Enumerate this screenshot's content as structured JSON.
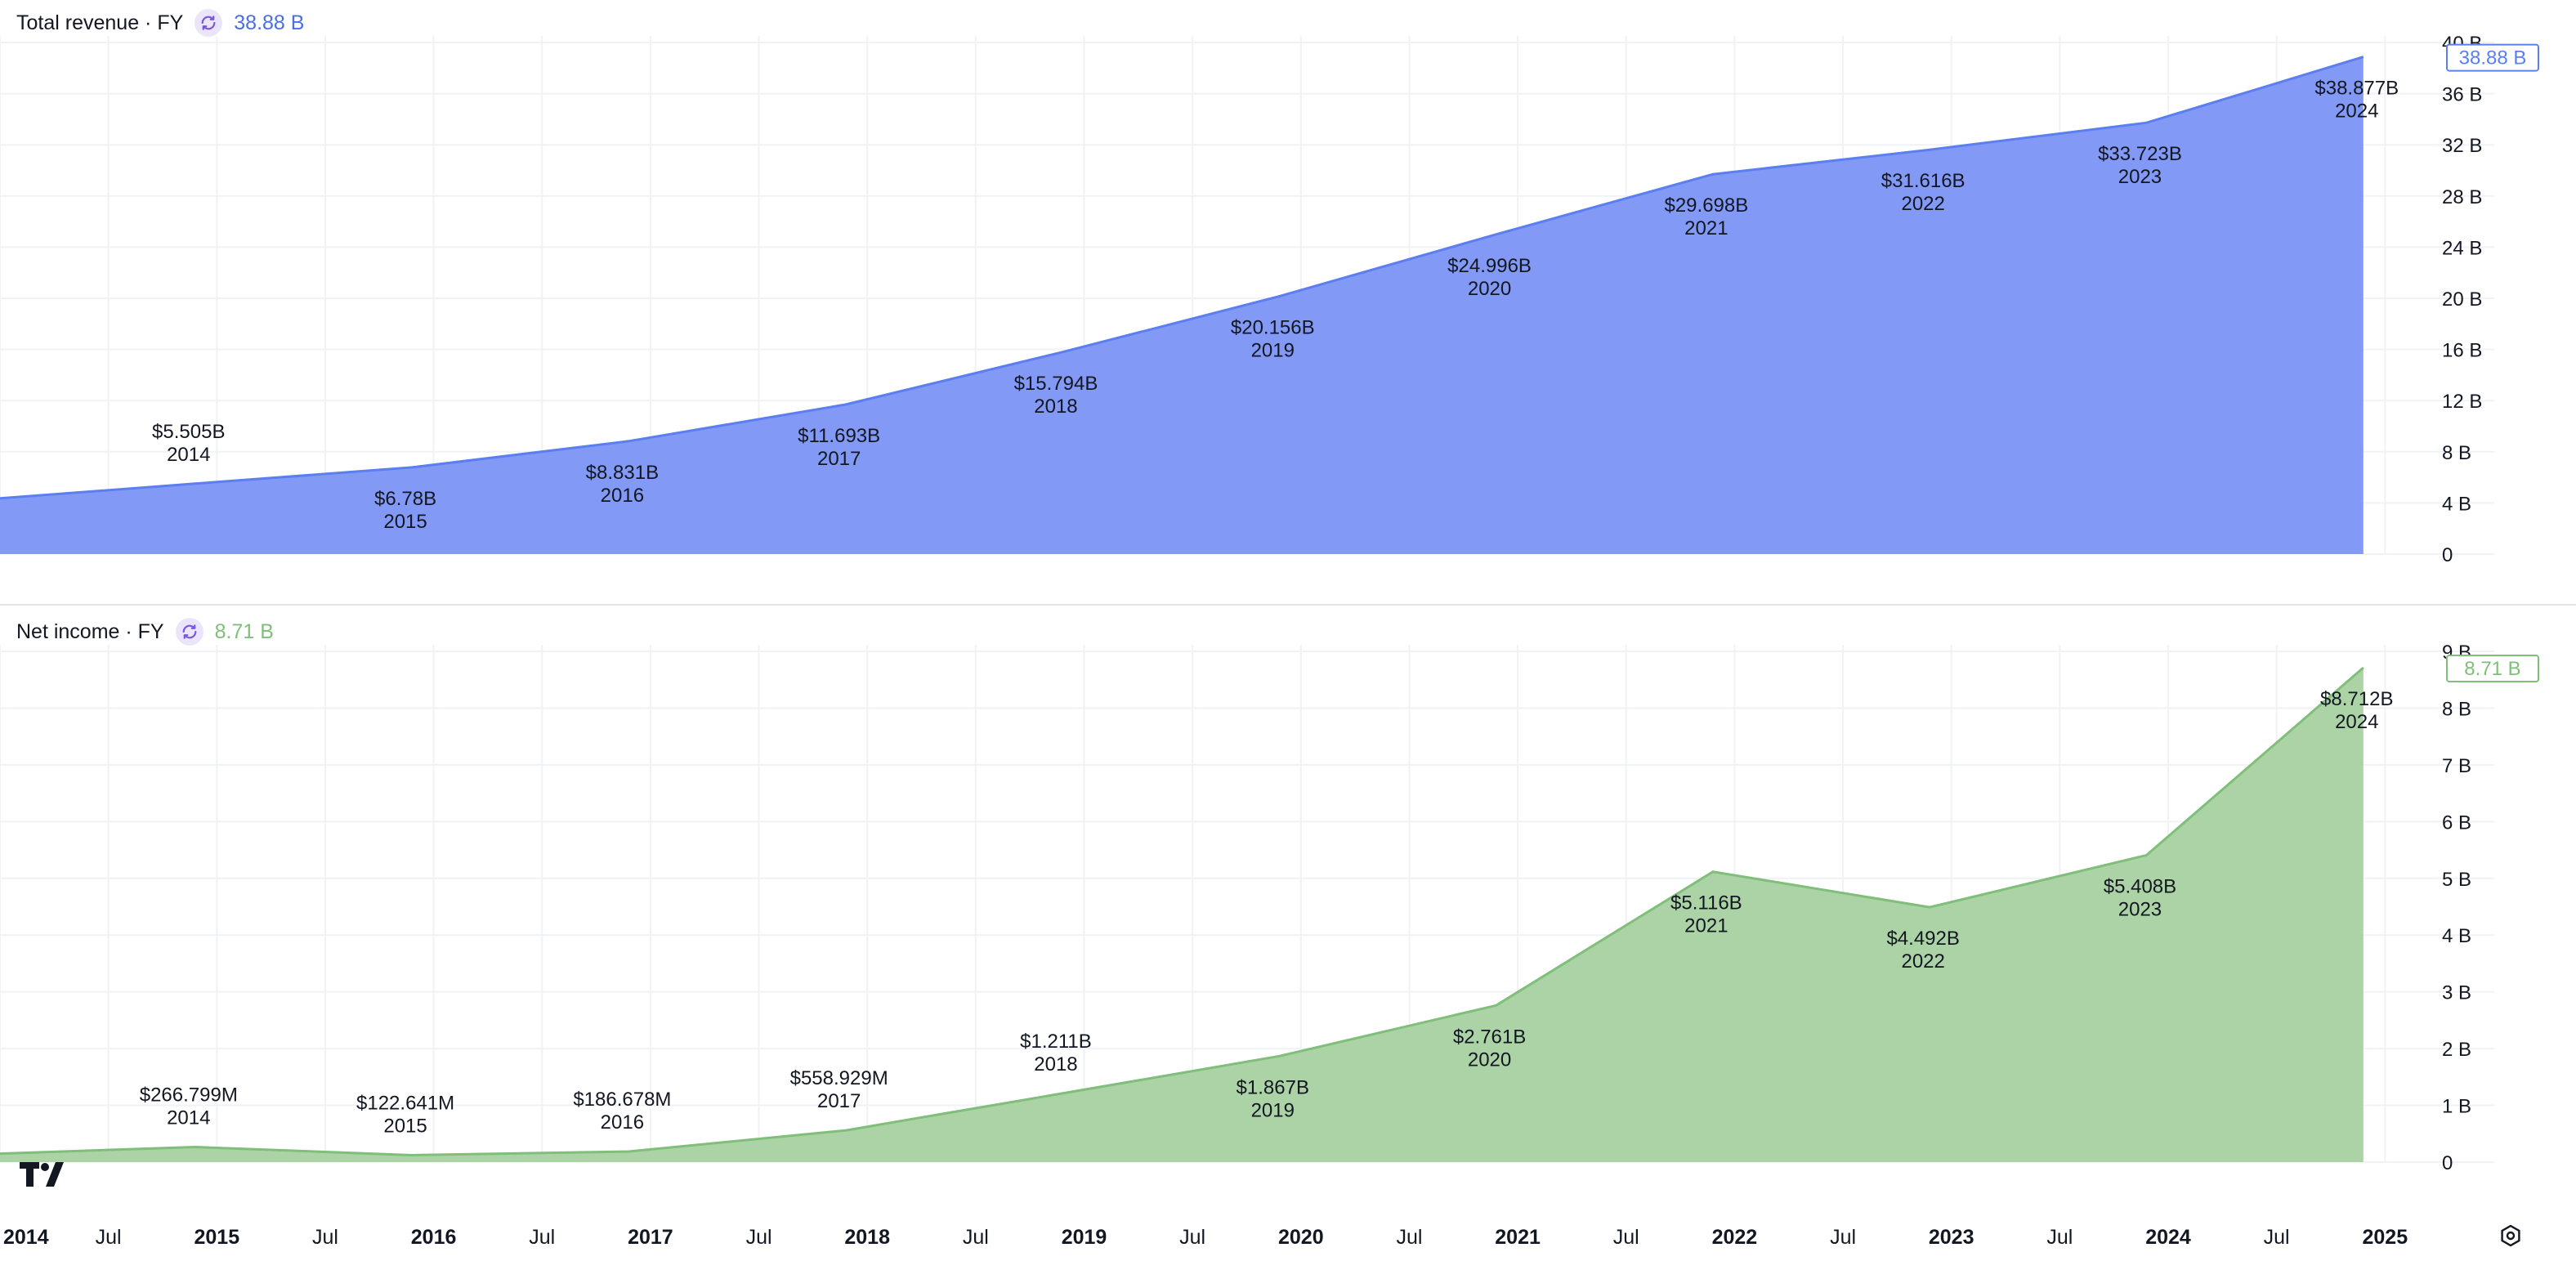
{
  "panes": [
    {
      "title": "Total revenue · FY",
      "current_value": "38.88 B",
      "price_tag": "38.88 B",
      "color": "#5b7ff0",
      "fill": "#8299f5",
      "y_ticks": [
        "0",
        "4 B",
        "8 B",
        "12 B",
        "16 B",
        "20 B",
        "24 B",
        "28 B",
        "32 B",
        "36 B",
        "40 B"
      ],
      "y_tick_values": [
        0,
        4,
        8,
        12,
        16,
        20,
        24,
        28,
        32,
        36,
        40
      ]
    },
    {
      "title": "Net income · FY",
      "current_value": "8.71 B",
      "price_tag": "8.71 B",
      "color": "#7fbf7a",
      "fill": "#acd3a6",
      "y_ticks": [
        "0",
        "1 B",
        "2 B",
        "3 B",
        "4 B",
        "5 B",
        "6 B",
        "7 B",
        "8 B",
        "9 B"
      ],
      "y_tick_values": [
        0,
        1,
        2,
        3,
        4,
        5,
        6,
        7,
        8,
        9
      ]
    }
  ],
  "x_axis": {
    "labels": [
      "2014",
      "Jul",
      "2015",
      "Jul",
      "2016",
      "Jul",
      "2017",
      "Jul",
      "2018",
      "Jul",
      "2019",
      "Jul",
      "2020",
      "Jul",
      "2021",
      "Jul",
      "2022",
      "Jul",
      "2023",
      "Jul",
      "2024",
      "Jul",
      "2025"
    ],
    "bold": [
      true,
      false,
      true,
      false,
      true,
      false,
      true,
      false,
      true,
      false,
      true,
      false,
      true,
      false,
      true,
      false,
      true,
      false,
      true,
      false,
      true,
      false,
      true
    ]
  },
  "chart_data": [
    {
      "type": "area",
      "title": "Total revenue · FY",
      "x": [
        "2014",
        "2015",
        "2016",
        "2017",
        "2018",
        "2019",
        "2020",
        "2021",
        "2022",
        "2023",
        "2024"
      ],
      "values": [
        5.505,
        6.78,
        8.831,
        11.693,
        15.794,
        20.156,
        24.996,
        29.698,
        31.616,
        33.723,
        38.877
      ],
      "unit": "B",
      "data_labels": [
        "$5.505B",
        "$6.78B",
        "$8.831B",
        "$11.693B",
        "$15.794B",
        "$20.156B",
        "$24.996B",
        "$29.698B",
        "$31.616B",
        "$33.723B",
        "$38.877B"
      ],
      "ylim": [
        0,
        40
      ],
      "grid": true,
      "label_below": [
        false,
        true,
        true,
        true,
        true,
        true,
        true,
        true,
        true,
        true,
        true
      ]
    },
    {
      "type": "area",
      "title": "Net income · FY",
      "x": [
        "2014",
        "2015",
        "2016",
        "2017",
        "2018",
        "2019",
        "2020",
        "2021",
        "2022",
        "2023",
        "2024"
      ],
      "values": [
        0.266799,
        0.122641,
        0.186678,
        0.558929,
        1.211,
        1.867,
        2.761,
        5.116,
        4.492,
        5.408,
        8.712
      ],
      "unit": "B",
      "data_labels": [
        "$266.799M",
        "$122.641M",
        "$186.678M",
        "$558.929M",
        "$1.211B",
        "$1.867B",
        "$2.761B",
        "$5.116B",
        "$4.492B",
        "$5.408B",
        "$8.712B"
      ],
      "ylim": [
        0,
        9
      ],
      "grid": true,
      "label_below": [
        false,
        false,
        false,
        false,
        false,
        true,
        true,
        true,
        true,
        true,
        true
      ]
    }
  ]
}
